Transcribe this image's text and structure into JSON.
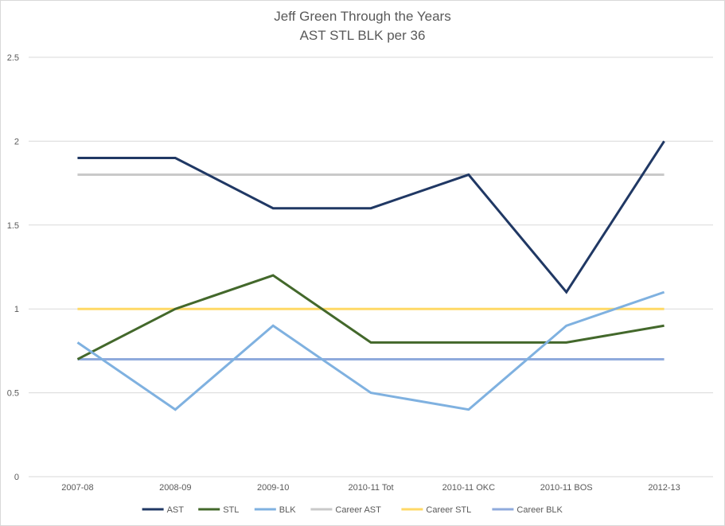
{
  "chart_data": {
    "type": "line",
    "title": "Jeff Green Through the Years",
    "subtitle": "AST STL BLK per 36",
    "xlabel": "",
    "ylabel": "",
    "categories": [
      "2007-08",
      "2008-09",
      "2009-10",
      "2010-11 Tot",
      "2010-11 OKC",
      "2010-11 BOS",
      "2012-13"
    ],
    "ylim": [
      0,
      2.5
    ],
    "yticks": [
      "0",
      "0.5",
      "1",
      "1.5",
      "2",
      "2.5"
    ],
    "grid": "horizontal",
    "legend_position": "bottom",
    "series": [
      {
        "name": "AST",
        "color": "#203864",
        "values": [
          1.9,
          1.9,
          1.6,
          1.6,
          1.8,
          1.1,
          2.0
        ]
      },
      {
        "name": "STL",
        "color": "#43682b",
        "values": [
          0.7,
          1.0,
          1.2,
          0.8,
          0.8,
          0.8,
          0.9
        ]
      },
      {
        "name": "BLK",
        "color": "#7fb1e0",
        "values": [
          0.8,
          0.4,
          0.9,
          0.5,
          0.4,
          0.9,
          1.1
        ]
      },
      {
        "name": "Career AST",
        "color": "#c9c9c9",
        "values": [
          1.8,
          1.8,
          1.8,
          1.8,
          1.8,
          1.8,
          1.8
        ]
      },
      {
        "name": "Career STL",
        "color": "#ffd966",
        "values": [
          1.0,
          1.0,
          1.0,
          1.0,
          1.0,
          1.0,
          1.0
        ]
      },
      {
        "name": "Career BLK",
        "color": "#8faadc",
        "values": [
          0.7,
          0.7,
          0.7,
          0.7,
          0.7,
          0.7,
          0.7
        ]
      }
    ]
  }
}
